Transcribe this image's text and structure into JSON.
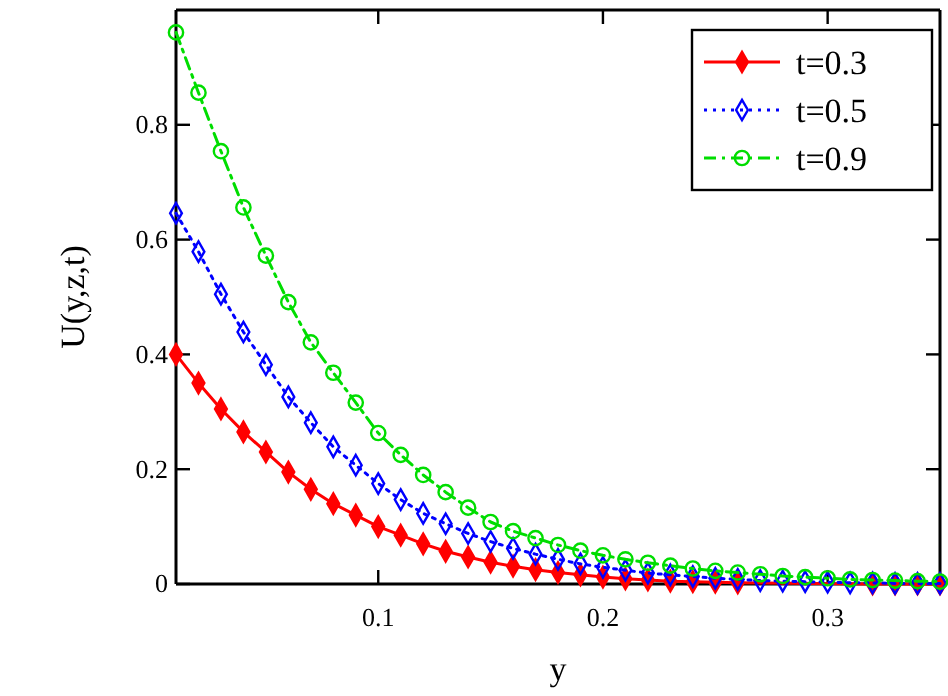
{
  "chart_data": {
    "type": "line",
    "xlabel": "y",
    "ylabel": "U(y,z,t)",
    "x": [
      0.01,
      0.02,
      0.03,
      0.04,
      0.05,
      0.06,
      0.07,
      0.08,
      0.09,
      0.1,
      0.11,
      0.12,
      0.13,
      0.14,
      0.15,
      0.16,
      0.17,
      0.18,
      0.19,
      0.2,
      0.21,
      0.22,
      0.23,
      0.24,
      0.25,
      0.26,
      0.27,
      0.28,
      0.29,
      0.3,
      0.31,
      0.32,
      0.33,
      0.34,
      0.35
    ],
    "series": [
      {
        "name": "t=0.3",
        "color": "#ff0000",
        "marker": "diamond",
        "line_style": "solid",
        "values": [
          0.4,
          0.35,
          0.305,
          0.265,
          0.23,
          0.195,
          0.165,
          0.14,
          0.12,
          0.1,
          0.085,
          0.07,
          0.057,
          0.047,
          0.038,
          0.031,
          0.025,
          0.02,
          0.016,
          0.012,
          0.009,
          0.007,
          0.005,
          0.004,
          0.003,
          0.002,
          null,
          null,
          null,
          null,
          null,
          0,
          0,
          0,
          0
        ]
      },
      {
        "name": "t=0.5",
        "color": "#0000ff",
        "marker": "diamond",
        "line_style": "dotted",
        "values": [
          0.646,
          0.579,
          0.505,
          0.439,
          0.382,
          0.326,
          0.281,
          0.239,
          0.207,
          0.175,
          0.147,
          0.123,
          0.105,
          0.088,
          0.074,
          0.062,
          0.052,
          0.043,
          0.035,
          0.029,
          0.024,
          0.019,
          0.016,
          0.013,
          0.01,
          0.008,
          0.006,
          0.005,
          0.004,
          0.003,
          0.002,
          0.002,
          0.001,
          0.001,
          0.001
        ]
      },
      {
        "name": "t=0.9",
        "color": "#00dd00",
        "marker": "circle",
        "line_style": "dashdot",
        "values": [
          0.961,
          0.856,
          0.754,
          0.656,
          0.572,
          0.491,
          0.421,
          0.368,
          0.316,
          0.263,
          0.225,
          0.19,
          0.16,
          0.133,
          0.108,
          0.092,
          0.08,
          0.068,
          0.058,
          0.05,
          0.043,
          0.037,
          0.032,
          0.027,
          0.023,
          0.02,
          0.017,
          0.014,
          0.012,
          0.01,
          0.008,
          0.007,
          0.006,
          0.005,
          0.004
        ]
      }
    ],
    "xlim": [
      0.01,
      0.35
    ],
    "xticks": [
      0.1,
      0.2,
      0.3
    ],
    "ylim": [
      0,
      1
    ],
    "yticks": [
      0,
      0.2,
      0.4,
      0.6,
      0.8
    ],
    "legend": "top right",
    "grid": false
  }
}
